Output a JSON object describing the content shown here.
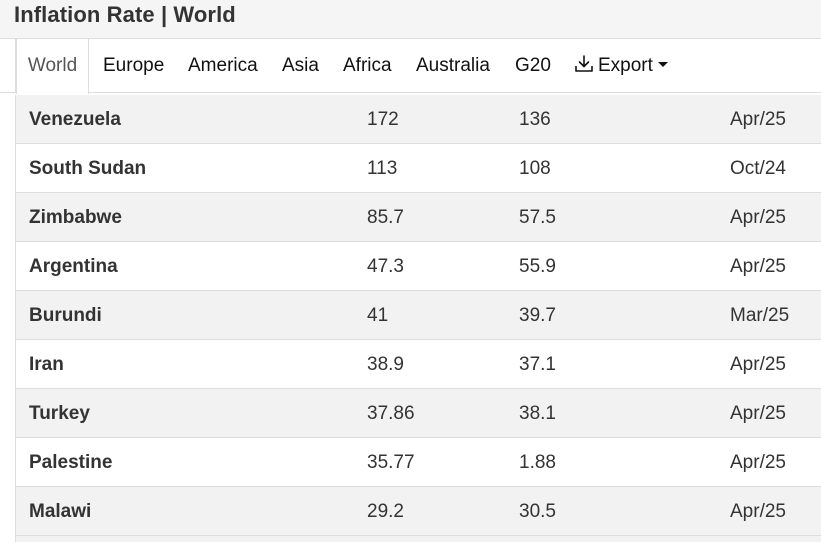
{
  "header": {
    "title": "Inflation Rate | World"
  },
  "tabs": [
    {
      "label": "World",
      "active": true
    },
    {
      "label": "Europe"
    },
    {
      "label": "America"
    },
    {
      "label": "Asia"
    },
    {
      "label": "Africa"
    },
    {
      "label": "Australia"
    },
    {
      "label": "G20"
    }
  ],
  "export": {
    "label": "Export",
    "icon": "download-icon"
  },
  "table": {
    "rows": [
      {
        "country": "Venezuela",
        "last": "172",
        "previous": "136",
        "reference": "Apr/25"
      },
      {
        "country": "South Sudan",
        "last": "113",
        "previous": "108",
        "reference": "Oct/24"
      },
      {
        "country": "Zimbabwe",
        "last": "85.7",
        "previous": "57.5",
        "reference": "Apr/25"
      },
      {
        "country": "Argentina",
        "last": "47.3",
        "previous": "55.9",
        "reference": "Apr/25"
      },
      {
        "country": "Burundi",
        "last": "41",
        "previous": "39.7",
        "reference": "Mar/25"
      },
      {
        "country": "Iran",
        "last": "38.9",
        "previous": "37.1",
        "reference": "Apr/25"
      },
      {
        "country": "Turkey",
        "last": "37.86",
        "previous": "38.1",
        "reference": "Apr/25"
      },
      {
        "country": "Palestine",
        "last": "35.77",
        "previous": "1.88",
        "reference": "Apr/25"
      },
      {
        "country": "Malawi",
        "last": "29.2",
        "previous": "30.5",
        "reference": "Apr/25"
      }
    ]
  },
  "colors": {
    "text": "#333333",
    "border": "#dddddd",
    "row_alt": "#f2f2f2",
    "header_bg": "#f5f5f5"
  }
}
